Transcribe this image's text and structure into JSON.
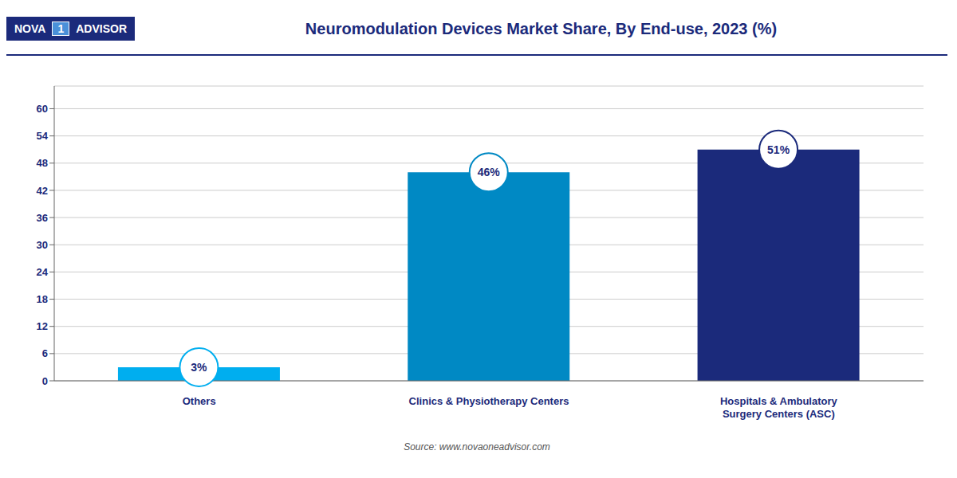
{
  "chart_data": {
    "type": "bar",
    "title": "Neuromodulation Devices Market Share, By End-use, 2023 (%)",
    "categories": [
      "Others",
      "Clinics & Physiotherapy Centers",
      "Hospitals & Ambulatory\nSurgery Centers (ASC)"
    ],
    "values": [
      3,
      46,
      51
    ],
    "value_labels": [
      "3%",
      "46%",
      "51%"
    ],
    "data_labels": true,
    "colors": [
      "#00AEEF",
      "#0089C4",
      "#1B2A7B"
    ],
    "ylim": [
      0,
      65
    ],
    "yticks": [
      0,
      6,
      12,
      18,
      24,
      30,
      36,
      42,
      48,
      54,
      60
    ],
    "grid": true,
    "annotations": [
      "NOVA",
      "1",
      "ADVISOR",
      "Source: www.novaoneadvisor.com"
    ]
  }
}
